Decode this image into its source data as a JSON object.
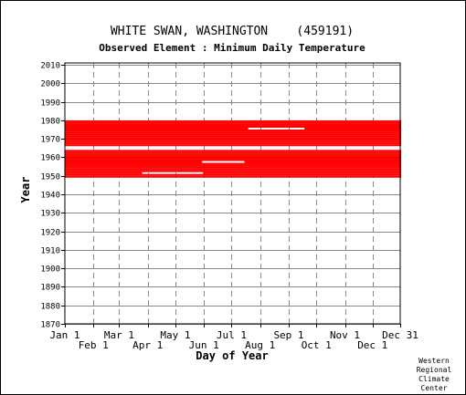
{
  "chart_data": {
    "type": "heatmap",
    "title": "WHITE SWAN, WASHINGTON    (459191)",
    "subtitle": "Observed Element : Minimum Daily Temperature",
    "xlabel": "Day of Year",
    "ylabel": "Year",
    "xlim": [
      1,
      365
    ],
    "ylim": [
      1870,
      2011
    ],
    "x_ticks_upper": [
      {
        "label": "Jan 1",
        "day": 1
      },
      {
        "label": "Mar 1",
        "day": 60
      },
      {
        "label": "May 1",
        "day": 121
      },
      {
        "label": "Jul 1",
        "day": 182
      },
      {
        "label": "Sep 1",
        "day": 244
      },
      {
        "label": "Nov 1",
        "day": 305
      },
      {
        "label": "Dec 31",
        "day": 365
      }
    ],
    "x_ticks_lower": [
      {
        "label": "Feb 1",
        "day": 32
      },
      {
        "label": "Apr 1",
        "day": 91
      },
      {
        "label": "Jun 1",
        "day": 152
      },
      {
        "label": "Aug 1",
        "day": 213
      },
      {
        "label": "Oct 1",
        "day": 274
      },
      {
        "label": "Dec 1",
        "day": 335
      }
    ],
    "y_ticks": [
      "2010",
      "2000",
      "1990",
      "1980",
      "1970",
      "1960",
      "1950",
      "1940",
      "1930",
      "1920",
      "1910",
      "1900",
      "1890",
      "1880",
      "1870"
    ],
    "grid": true,
    "data_color": "#ff0000",
    "record_years": [
      1949,
      1979
    ],
    "data_gaps": [
      {
        "year": 1965,
        "start_day": 1,
        "end_day": 365
      },
      {
        "year": 1964,
        "start_day": 1,
        "end_day": 365
      },
      {
        "year": 1957,
        "start_day": 150,
        "end_day": 195
      },
      {
        "year": 1951,
        "start_day": 85,
        "end_day": 150
      },
      {
        "year": 1975,
        "start_day": 200,
        "end_day": 260
      }
    ]
  },
  "credit": [
    "Western",
    "Regional",
    "Climate",
    "Center"
  ]
}
